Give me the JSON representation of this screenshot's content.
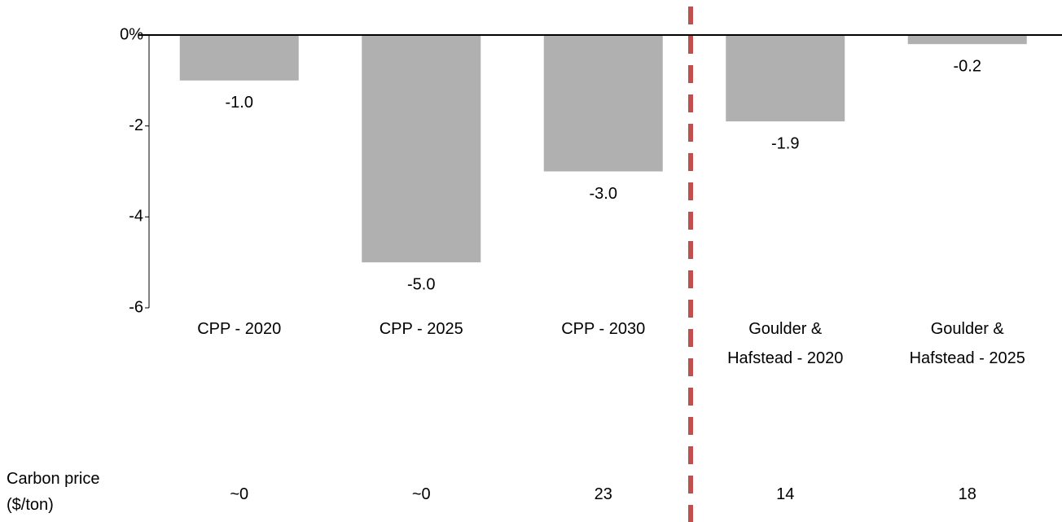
{
  "chart_data": {
    "type": "bar",
    "categories": [
      "CPP - 2020",
      "CPP - 2025",
      "CPP - 2030",
      "Goulder & Hafstead - 2020",
      "Goulder & Hafstead - 2025"
    ],
    "values": [
      -1.0,
      -5.0,
      -3.0,
      -1.9,
      -0.2
    ],
    "value_labels": [
      "-1.0",
      "-5.0",
      "-3.0",
      "-1.9",
      "-0.2"
    ],
    "color": "#b0b0b0",
    "ylim": [
      -6,
      0
    ],
    "yticks": [
      {
        "value": 0,
        "label": "0%"
      },
      -2,
      -4,
      -6
    ],
    "carbon_price_label": "Carbon price ($/ton)",
    "carbon_prices": [
      "~0",
      "~0",
      "23",
      "14",
      "18"
    ]
  }
}
